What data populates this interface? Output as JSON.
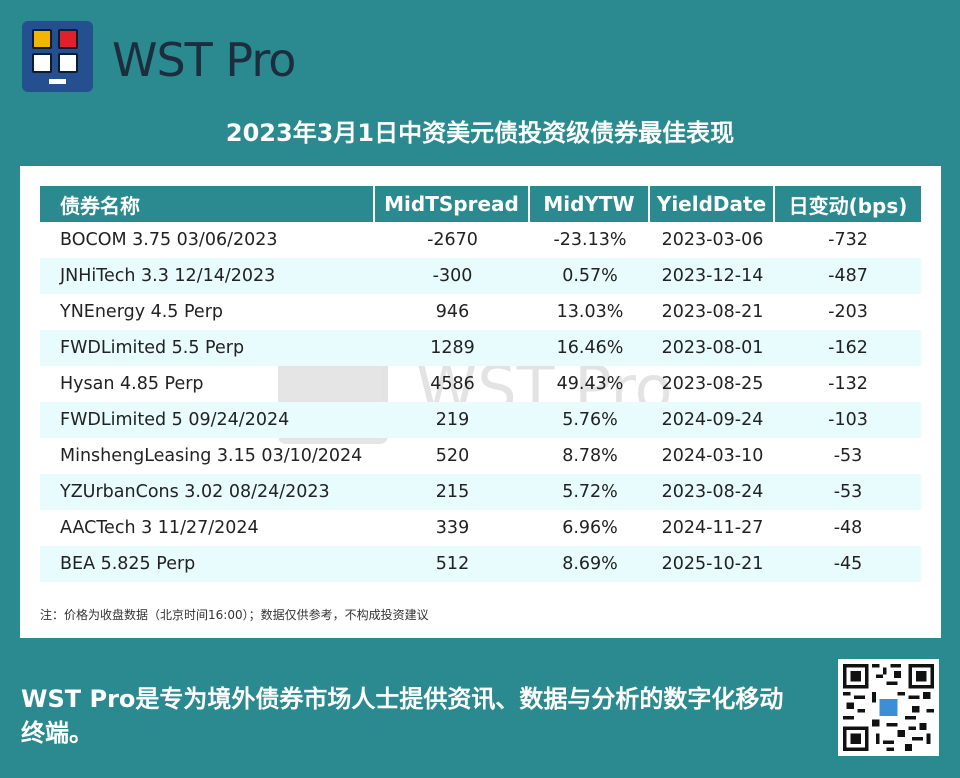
{
  "brand": {
    "name": "WST Pro"
  },
  "title": "2023年3月1日中资美元债投资级债券最佳表现",
  "table": {
    "headers": [
      "债券名称",
      "MidTSpread",
      "MidYTW",
      "YieldDate",
      "日变动(bps)"
    ],
    "rows": [
      [
        "BOCOM 3.75 03/06/2023",
        "-2670",
        "-23.13%",
        "2023-03-06",
        "-732"
      ],
      [
        "JNHiTech 3.3 12/14/2023",
        "-300",
        "0.57%",
        "2023-12-14",
        "-487"
      ],
      [
        "YNEnergy 4.5 Perp",
        "946",
        "13.03%",
        "2023-08-21",
        "-203"
      ],
      [
        "FWDLimited 5.5 Perp",
        "1289",
        "16.46%",
        "2023-08-01",
        "-162"
      ],
      [
        "Hysan 4.85 Perp",
        "4586",
        "49.43%",
        "2023-08-25",
        "-132"
      ],
      [
        "FWDLimited 5 09/24/2024",
        "219",
        "5.76%",
        "2024-09-24",
        "-103"
      ],
      [
        "MinshengLeasing 3.15 03/10/2024",
        "520",
        "8.78%",
        "2024-03-10",
        "-53"
      ],
      [
        "YZUrbanCons 3.02 08/24/2023",
        "215",
        "5.72%",
        "2023-08-24",
        "-53"
      ],
      [
        "AACTech 3 11/27/2024",
        "339",
        "6.96%",
        "2024-11-27",
        "-48"
      ],
      [
        "BEA 5.825 Perp",
        "512",
        "8.69%",
        "2025-10-21",
        "-45"
      ]
    ]
  },
  "note": "注：价格为收盘数据（北京时间16:00）；数据仅供参考，不构成投资建议",
  "footer": {
    "text": "WST Pro是专为境外债券市场人士提供资讯、数据与分析的数字化移动终端。"
  },
  "colors": {
    "background": "#2b8a8f",
    "header_bg": "#2b8a8f",
    "alt_row": "#e8fbfd",
    "logo_bg": "#24508f"
  },
  "icons": {
    "logo": "monitor-grid-logo-icon",
    "qr": "qr-code-icon"
  }
}
